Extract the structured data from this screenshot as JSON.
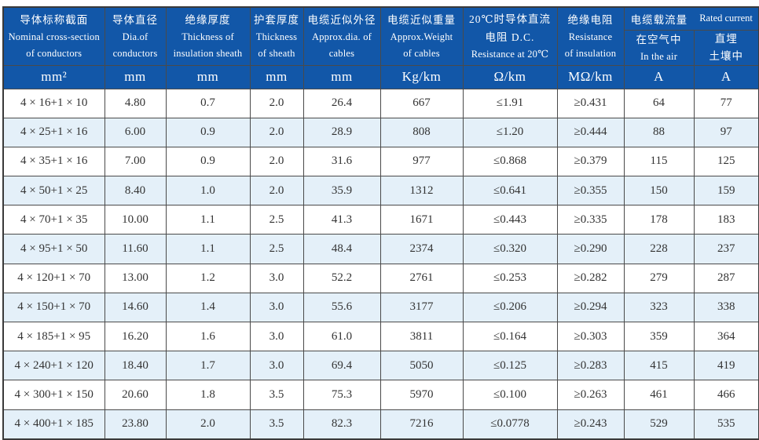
{
  "colors": {
    "header_bg": "#1257a8",
    "header_text": "#ffffff",
    "row_alt_bg": "#e4f0f9",
    "row_bg": "#ffffff",
    "border": "#4a4a4a",
    "data_text": "#333333"
  },
  "table": {
    "group_header": {
      "zh": "电缆载流量",
      "en": "Rated current"
    },
    "columns": [
      {
        "lines": [
          "导体标称截面",
          "Nominal cross-section",
          "of conductors"
        ],
        "unit": "mm²"
      },
      {
        "lines": [
          "导体直径",
          "Dia.of",
          "conductors"
        ],
        "unit": "mm"
      },
      {
        "lines": [
          "绝缘厚度",
          "Thickness of",
          "insulation sheath"
        ],
        "unit": "mm"
      },
      {
        "lines": [
          "护套厚度",
          "Thickness",
          "of sheath"
        ],
        "unit": "mm"
      },
      {
        "lines": [
          "电缆近似外径",
          "Approx.dia. of",
          "cables"
        ],
        "unit": "mm"
      },
      {
        "lines": [
          "电缆近似重量",
          "Approx.Weight",
          "of cables"
        ],
        "unit": "Kg/km"
      },
      {
        "lines": [
          "20℃时导体直流",
          "电阻 D.C.",
          "Resistance at 20℃"
        ],
        "unit": "Ω/km"
      },
      {
        "lines": [
          "绝缘电阻",
          "Resistance",
          "of insulation"
        ],
        "unit": "MΩ/km"
      },
      {
        "lines": [
          "在空气中",
          "In the air"
        ],
        "unit": "A"
      },
      {
        "lines": [
          "直埋",
          "土壤中"
        ],
        "unit": "A"
      }
    ],
    "rows": [
      [
        "4 × 16+1 × 10",
        "4.80",
        "0.7",
        "2.0",
        "26.4",
        "667",
        "≤1.91",
        "≥0.431",
        "64",
        "77"
      ],
      [
        "4 × 25+1 × 16",
        "6.00",
        "0.9",
        "2.0",
        "28.9",
        "808",
        "≤1.20",
        "≥0.444",
        "88",
        "97"
      ],
      [
        "4 × 35+1 × 16",
        "7.00",
        "0.9",
        "2.0",
        "31.6",
        "977",
        "≤0.868",
        "≥0.379",
        "115",
        "125"
      ],
      [
        "4 × 50+1 × 25",
        "8.40",
        "1.0",
        "2.0",
        "35.9",
        "1312",
        "≤0.641",
        "≥0.355",
        "150",
        "159"
      ],
      [
        "4 × 70+1 × 35",
        "10.00",
        "1.1",
        "2.5",
        "41.3",
        "1671",
        "≤0.443",
        "≥0.335",
        "178",
        "183"
      ],
      [
        "4 × 95+1 × 50",
        "11.60",
        "1.1",
        "2.5",
        "48.4",
        "2374",
        "≤0.320",
        "≥0.290",
        "228",
        "237"
      ],
      [
        "4 × 120+1 × 70",
        "13.00",
        "1.2",
        "3.0",
        "52.2",
        "2761",
        "≤0.253",
        "≥0.282",
        "279",
        "287"
      ],
      [
        "4 × 150+1 × 70",
        "14.60",
        "1.4",
        "3.0",
        "55.6",
        "3177",
        "≤0.206",
        "≥0.294",
        "323",
        "338"
      ],
      [
        "4 × 185+1 × 95",
        "16.20",
        "1.6",
        "3.0",
        "61.0",
        "3811",
        "≤0.164",
        "≥0.303",
        "359",
        "364"
      ],
      [
        "4 × 240+1 × 120",
        "18.40",
        "1.7",
        "3.0",
        "69.4",
        "5050",
        "≤0.125",
        "≥0.283",
        "415",
        "419"
      ],
      [
        "4 × 300+1 × 150",
        "20.60",
        "1.8",
        "3.5",
        "75.3",
        "5970",
        "≤0.100",
        "≥0.263",
        "461",
        "466"
      ],
      [
        "4 × 400+1 × 185",
        "23.80",
        "2.0",
        "3.5",
        "82.3",
        "7216",
        "≤0.0778",
        "≥0.243",
        "529",
        "535"
      ]
    ]
  }
}
